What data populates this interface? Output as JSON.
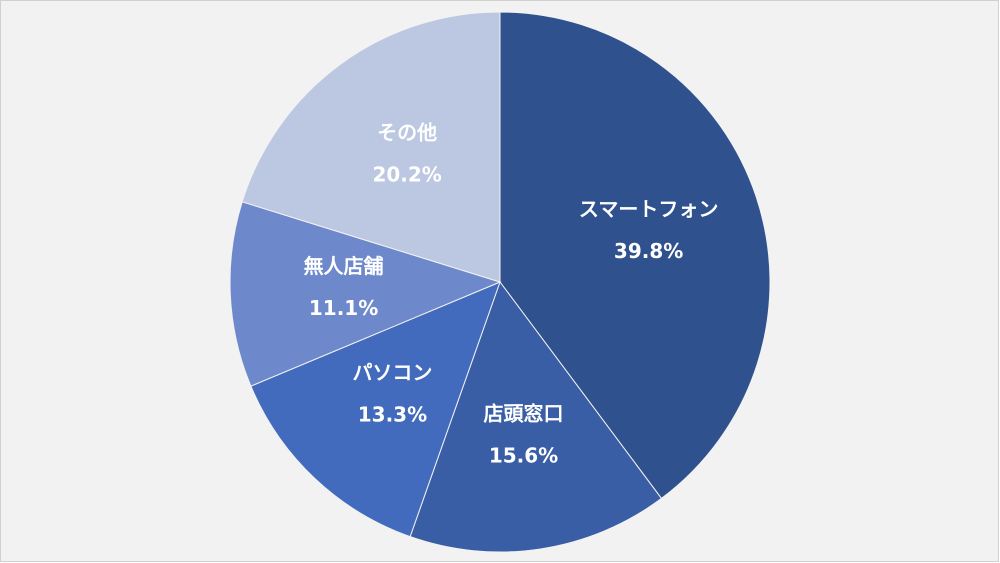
{
  "chart_data": {
    "type": "pie",
    "categories": [
      "スマートフォン",
      "店頭窓口",
      "パソコン",
      "無人店舗",
      "その他"
    ],
    "values": [
      39.8,
      15.6,
      13.3,
      11.1,
      20.2
    ],
    "value_labels": [
      "39.8%",
      "15.6%",
      "13.3%",
      "11.1%",
      "20.2%"
    ],
    "colors": [
      "#2f528f",
      "#3a5ea6",
      "#436bbd",
      "#6e89cb",
      "#bcc7e2"
    ]
  }
}
